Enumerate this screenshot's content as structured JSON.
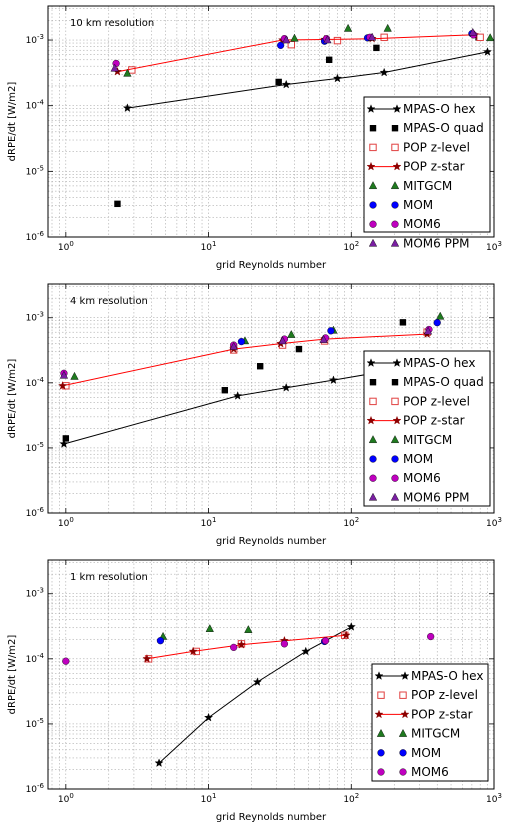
{
  "chart_data": [
    {
      "type": "scatter",
      "title": "10 km resolution",
      "xlabel": "grid Reynolds number",
      "ylabel": "dRPE/dt [W/m2]",
      "xscale": "log",
      "yscale": "log",
      "xlim": [
        0.75,
        1000
      ],
      "ylim": [
        1e-06,
        0.0033
      ],
      "grid": true,
      "legend_position": "lower right",
      "x_tick_labels": [
        "10^0",
        "10^1",
        "10^2",
        "10^3"
      ],
      "y_tick_labels": [
        "10^-6",
        "10^-5",
        "10^-4",
        "10^-3"
      ],
      "series": [
        {
          "name": "MPAS-O hex",
          "marker": "star",
          "color": "#000000",
          "line": true,
          "points": [
            [
              2.7,
              9.2e-05
            ],
            [
              35,
              0.00021
            ],
            [
              80,
              0.00026
            ],
            [
              170,
              0.00032
            ],
            [
              900,
              0.00066
            ]
          ]
        },
        {
          "name": "MPAS-O quad",
          "marker": "square",
          "color": "#000000",
          "line": false,
          "points": [
            [
              2.3,
              3.2e-06
            ],
            [
              31,
              0.00023
            ],
            [
              70,
              0.0005
            ],
            [
              150,
              0.00076
            ],
            [
              780,
              0.0011
            ]
          ]
        },
        {
          "name": "POP z-level",
          "marker": "open-square",
          "color": "#e04040",
          "line": false,
          "points": [
            [
              2.9,
              0.00035
            ],
            [
              38,
              0.00085
            ],
            [
              80,
              0.00098
            ],
            [
              170,
              0.0011
            ],
            [
              800,
              0.0011
            ]
          ]
        },
        {
          "name": "POP z-star",
          "marker": "star",
          "color": "#8b0000",
          "line": true,
          "line_color": "#ff0000",
          "points": [
            [
              2.3,
              0.00033
            ],
            [
              33,
              0.001
            ],
            [
              65,
              0.00102
            ],
            [
              140,
              0.00105
            ],
            [
              730,
              0.0012
            ]
          ]
        },
        {
          "name": "MITGCM",
          "marker": "triangle",
          "color": "#1f7a1f",
          "line": false,
          "points": [
            [
              2.7,
              0.00031
            ],
            [
              40,
              0.00106
            ],
            [
              95,
              0.0015
            ],
            [
              180,
              0.0015
            ],
            [
              940,
              0.00108
            ]
          ]
        },
        {
          "name": "MOM",
          "marker": "circle",
          "color": "#0000ff",
          "line": false,
          "points": [
            [
              32,
              0.00083
            ],
            [
              65,
              0.00096
            ],
            [
              130,
              0.00108
            ],
            [
              700,
              0.00125
            ]
          ]
        },
        {
          "name": "MOM6",
          "marker": "circle",
          "color": "#bf00bf",
          "line": false,
          "points": [
            [
              2.25,
              0.00044
            ],
            [
              34,
              0.00105
            ],
            [
              67,
              0.00105
            ],
            [
              135,
              0.0011
            ],
            [
              720,
              0.0012
            ]
          ]
        },
        {
          "name": "MOM6 PPM",
          "marker": "triangle",
          "color": "#7a1fa2",
          "line": false,
          "points": [
            [
              2.2,
              0.00037
            ],
            [
              35,
              0.001
            ],
            [
              68,
              0.001
            ],
            [
              140,
              0.0011
            ],
            [
              710,
              0.0013
            ]
          ]
        }
      ]
    },
    {
      "type": "scatter",
      "title": "4 km resolution",
      "xlabel": "grid Reynolds number",
      "ylabel": "dRPE/dt [W/m2]",
      "xscale": "log",
      "yscale": "log",
      "xlim": [
        0.75,
        1000
      ],
      "ylim": [
        1e-06,
        0.0033
      ],
      "grid": true,
      "legend_position": "lower right",
      "x_tick_labels": [
        "10^0",
        "10^1",
        "10^2",
        "10^3"
      ],
      "y_tick_labels": [
        "10^-6",
        "10^-5",
        "10^-4",
        "10^-3"
      ],
      "series": [
        {
          "name": "MPAS-O hex",
          "marker": "star",
          "color": "#000000",
          "line": true,
          "points": [
            [
              0.97,
              1.15e-05
            ],
            [
              16,
              6.3e-05
            ],
            [
              35,
              8.4e-05
            ],
            [
              75,
              0.00011
            ],
            [
              240,
              0.00017
            ]
          ]
        },
        {
          "name": "MPAS-O quad",
          "marker": "square",
          "color": "#000000",
          "line": false,
          "points": [
            [
              1.0,
              1.4e-05
            ],
            [
              13,
              7.7e-05
            ],
            [
              23,
              0.00018
            ],
            [
              43,
              0.00033
            ],
            [
              230,
              0.00085
            ]
          ]
        },
        {
          "name": "POP z-level",
          "marker": "open-square",
          "color": "#e04040",
          "line": false,
          "points": [
            [
              1.0,
              9e-05
            ],
            [
              15,
              0.00032
            ],
            [
              33,
              0.00038
            ],
            [
              65,
              0.00044
            ],
            [
              340,
              0.0006
            ]
          ]
        },
        {
          "name": "POP z-star",
          "marker": "star",
          "color": "#8b0000",
          "line": true,
          "line_color": "#ff0000",
          "points": [
            [
              0.95,
              9e-05
            ],
            [
              15,
              0.00033
            ],
            [
              32,
              0.0004
            ],
            [
              65,
              0.00047
            ],
            [
              340,
              0.00056
            ]
          ]
        },
        {
          "name": "MITGCM",
          "marker": "triangle",
          "color": "#1f7a1f",
          "line": false,
          "points": [
            [
              1.15,
              0.000125
            ],
            [
              18,
              0.00044
            ],
            [
              38,
              0.00055
            ],
            [
              75,
              0.00064
            ],
            [
              420,
              0.00105
            ]
          ]
        },
        {
          "name": "MOM",
          "marker": "circle",
          "color": "#0000ff",
          "line": false,
          "points": [
            [
              17,
              0.00043
            ],
            [
              72,
              0.00063
            ],
            [
              400,
              0.00084
            ]
          ]
        },
        {
          "name": "MOM6",
          "marker": "circle",
          "color": "#bf00bf",
          "line": false,
          "points": [
            [
              0.97,
              0.00014
            ],
            [
              15,
              0.00038
            ],
            [
              34,
              0.00047
            ],
            [
              66,
              0.00049
            ],
            [
              350,
              0.00066
            ]
          ]
        },
        {
          "name": "MOM6 PPM",
          "marker": "triangle",
          "color": "#7a1fa2",
          "line": false,
          "points": [
            [
              0.97,
              0.00013
            ],
            [
              15,
              0.00036
            ],
            [
              33,
              0.00044
            ],
            [
              64,
              0.00046
            ],
            [
              345,
              0.00062
            ]
          ]
        }
      ]
    },
    {
      "type": "scatter",
      "title": "1 km resolution",
      "xlabel": "grid Reynolds number",
      "ylabel": "dRPE/dt [W/m2]",
      "xscale": "log",
      "yscale": "log",
      "xlim": [
        0.75,
        1000
      ],
      "ylim": [
        1e-06,
        0.0033
      ],
      "grid": true,
      "legend_position": "lower right",
      "x_tick_labels": [
        "10^0",
        "10^1",
        "10^2",
        "10^3"
      ],
      "y_tick_labels": [
        "10^-6",
        "10^-5",
        "10^-4",
        "10^-3"
      ],
      "series": [
        {
          "name": "MPAS-O hex",
          "marker": "star",
          "color": "#000000",
          "line": true,
          "points": [
            [
              4.5,
              2.5e-06
            ],
            [
              10,
              1.25e-05
            ],
            [
              22,
              4.4e-05
            ],
            [
              48,
              0.00013
            ],
            [
              100,
              0.00031
            ]
          ]
        },
        {
          "name": "POP z-level",
          "marker": "open-square",
          "color": "#e04040",
          "line": false,
          "points": [
            [
              3.8,
              0.0001
            ],
            [
              8.2,
              0.00013
            ],
            [
              17,
              0.00017
            ],
            [
              90,
              0.00023
            ]
          ]
        },
        {
          "name": "POP z-star",
          "marker": "star",
          "color": "#8b0000",
          "line": true,
          "line_color": "#ff0000",
          "points": [
            [
              3.7,
              0.0001
            ],
            [
              7.8,
              0.00013
            ],
            [
              17,
              0.000165
            ],
            [
              34,
              0.00019
            ],
            [
              92,
              0.00023
            ]
          ]
        },
        {
          "name": "MITGCM",
          "marker": "triangle",
          "color": "#1f7a1f",
          "line": false,
          "points": [
            [
              4.8,
              0.00022
            ],
            [
              10.2,
              0.00029
            ],
            [
              19,
              0.00028
            ]
          ]
        },
        {
          "name": "MOM",
          "marker": "circle",
          "color": "#0000ff",
          "line": false,
          "points": [
            [
              4.6,
              0.00019
            ],
            [
              65,
              0.000185
            ]
          ]
        },
        {
          "name": "MOM6",
          "marker": "circle",
          "color": "#bf00bf",
          "line": false,
          "points": [
            [
              1.0,
              9.2e-05
            ],
            [
              15,
              0.00015
            ],
            [
              34,
              0.00017
            ],
            [
              66,
              0.00019
            ],
            [
              360,
              0.00022
            ]
          ]
        }
      ]
    }
  ]
}
